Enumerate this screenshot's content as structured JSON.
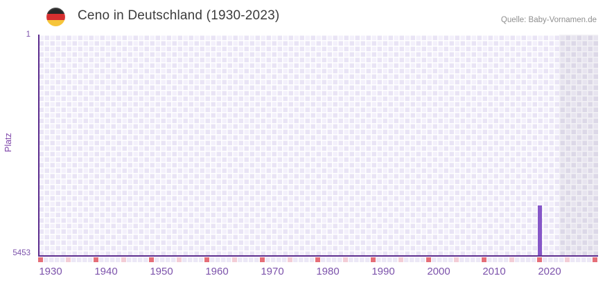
{
  "header": {
    "title": "Ceno in Deutschland (1930-2023)",
    "source": "Quelle: Baby-Vornamen.de",
    "flag_icon": "german-flag-icon"
  },
  "chart_data": {
    "type": "bar",
    "title": "Ceno in Deutschland (1930-2023)",
    "name": "Ceno",
    "ylabel": "Platz",
    "y_axis": {
      "top_label": "1",
      "bottom_label": "5453",
      "min": 1,
      "max": 5453,
      "inverted": true
    },
    "x_axis": {
      "start": 1930,
      "end": 2030,
      "data_end": 2023,
      "tick_step_minor": 5,
      "tick_step_major": 10,
      "decade_labels": [
        "1930",
        "1940",
        "1950",
        "1960",
        "1970",
        "1980",
        "1990",
        "2000",
        "2010",
        "2020"
      ]
    },
    "series": [
      {
        "name": "Platz",
        "points": [
          {
            "year": 2020,
            "rank": 4200
          }
        ]
      }
    ],
    "layout_hints": {
      "grid": "checkerboard",
      "legend": "none",
      "future_region_start": 2024
    },
    "colors": {
      "bar": "#8657c8",
      "axis": "#5c2d8e",
      "tick_major": "#e56e78",
      "tick_minor": "#f3cdd6",
      "label_purple": "#7c52ab",
      "cell_light": "#f3f0fb",
      "cell_dark": "#e9e4f5",
      "future_cell_light": "#e7e4ef",
      "future_cell_dark": "#dcd8e7",
      "title_text": "#3c3c3c",
      "source_text": "#8f8f8f"
    }
  }
}
